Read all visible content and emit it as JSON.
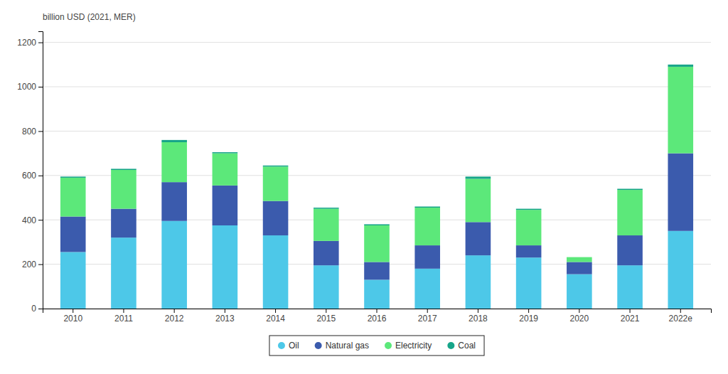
{
  "chart_data": {
    "type": "bar",
    "stacked": true,
    "ylabel": "billion USD (2021, MER)",
    "categories": [
      "2010",
      "2011",
      "2012",
      "2013",
      "2014",
      "2015",
      "2016",
      "2017",
      "2018",
      "2019",
      "2020",
      "2021",
      "2022e"
    ],
    "series": [
      {
        "name": "Oil",
        "color": "#4DC8E8",
        "values": [
          255,
          320,
          395,
          375,
          330,
          195,
          130,
          180,
          240,
          230,
          155,
          195,
          350
        ]
      },
      {
        "name": "Natural gas",
        "color": "#3B5BAD",
        "values": [
          160,
          130,
          175,
          180,
          155,
          110,
          80,
          105,
          150,
          55,
          55,
          135,
          350
        ]
      },
      {
        "name": "Electricity",
        "color": "#5CE87A",
        "values": [
          175,
          175,
          180,
          145,
          155,
          145,
          165,
          170,
          195,
          160,
          22,
          205,
          390
        ]
      },
      {
        "name": "Coal",
        "color": "#17A589",
        "values": [
          5,
          5,
          10,
          5,
          5,
          5,
          5,
          5,
          10,
          5,
          0,
          5,
          10
        ]
      }
    ],
    "ylim": [
      0,
      1250
    ],
    "yticks": [
      0,
      200,
      400,
      600,
      800,
      1000,
      1200
    ],
    "grid": true,
    "legend": "bottom"
  }
}
